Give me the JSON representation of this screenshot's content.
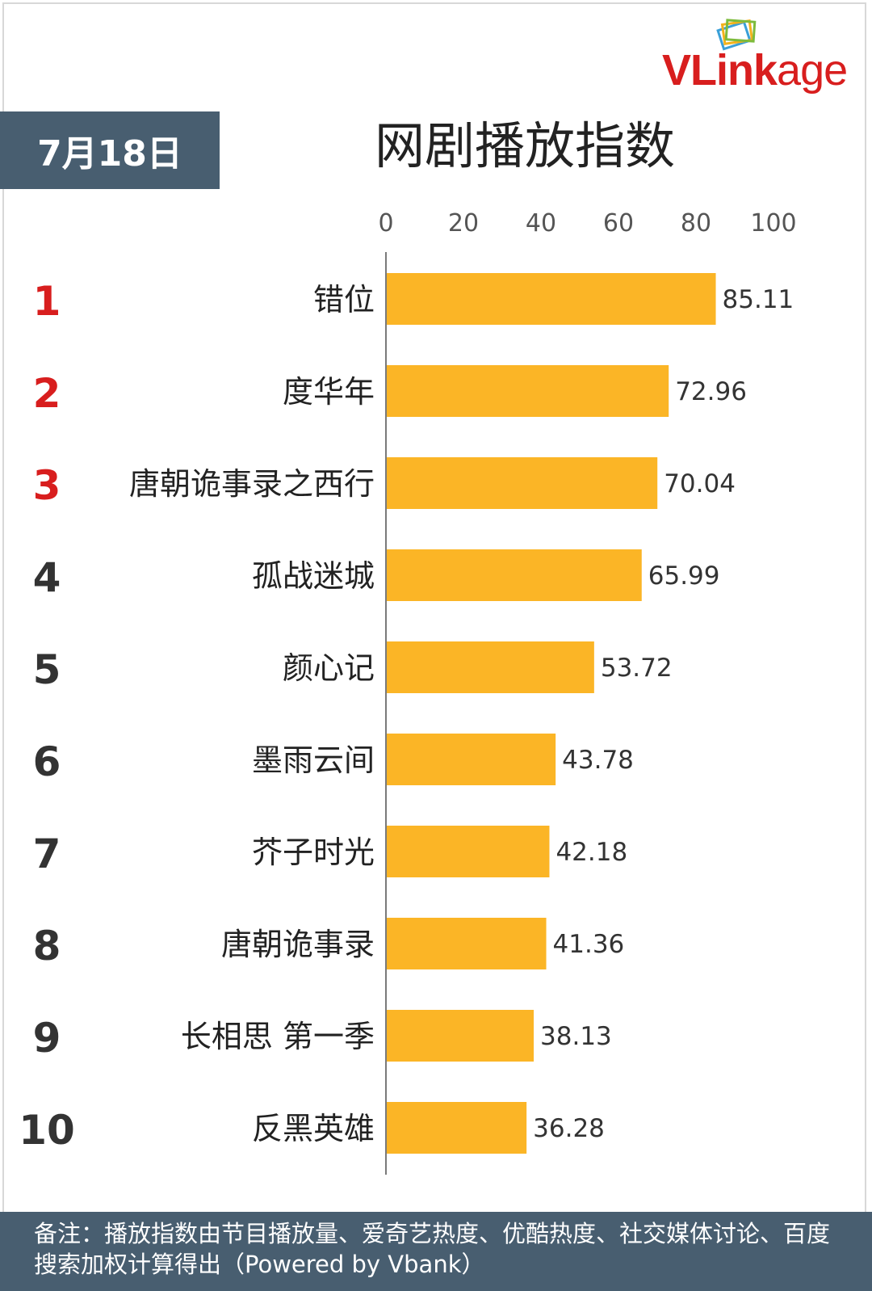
{
  "logo": {
    "brand_prefix": "VLink",
    "brand_suffix": "age"
  },
  "header": {
    "date": "7月18日"
  },
  "chart_data": {
    "type": "bar",
    "orientation": "horizontal",
    "title": "网剧播放指数",
    "xlim": [
      0,
      100
    ],
    "ticks": [
      0,
      20,
      40,
      60,
      80,
      100
    ],
    "tick_labels": [
      "0",
      "20",
      "40",
      "60",
      "80",
      "100"
    ],
    "bar_color": "#fbb526",
    "ranks": [
      "1",
      "2",
      "3",
      "4",
      "5",
      "6",
      "7",
      "8",
      "9",
      "10"
    ],
    "rank_colors": [
      "#d81e1e",
      "#d81e1e",
      "#d81e1e",
      "#333333",
      "#333333",
      "#333333",
      "#333333",
      "#333333",
      "#333333",
      "#333333"
    ],
    "categories": [
      "错位",
      "度华年",
      "唐朝诡事录之西行",
      "孤战迷城",
      "颜心记",
      "墨雨云间",
      "芥子时光",
      "唐朝诡事录",
      "长相思 第一季",
      "反黑英雄"
    ],
    "values": [
      85.11,
      72.96,
      70.04,
      65.99,
      53.72,
      43.78,
      42.18,
      41.36,
      38.13,
      36.28
    ],
    "value_labels": [
      "85.11",
      "72.96",
      "70.04",
      "65.99",
      "53.72",
      "43.78",
      "42.18",
      "41.36",
      "38.13",
      "36.28"
    ],
    "grid": false
  },
  "note": {
    "text": "备注：播放指数由节目播放量、爱奇艺热度、优酷热度、社交媒体讨论、百度搜索加权计算得出（Powered by Vbank）"
  }
}
